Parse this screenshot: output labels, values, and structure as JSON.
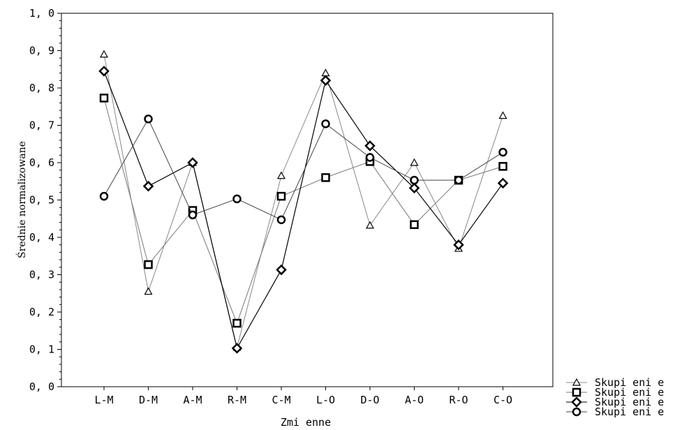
{
  "chart_data": {
    "type": "line",
    "xlabel": "Zmi enne",
    "ylabel": "Średnie normalizowane",
    "ylim": [
      0.0,
      1.0
    ],
    "yticks": [
      "0, 0",
      "0, 1",
      "0, 2",
      "0, 3",
      "0, 4",
      "0, 5",
      "0, 6",
      "0, 7",
      "0, 8",
      "0, 9",
      "1, 0"
    ],
    "categories": [
      "L-M",
      "D-M",
      "A-M",
      "R-M",
      "C-M",
      "L-O",
      "D-O",
      "A-O",
      "R-O",
      "C-O"
    ],
    "grid": false,
    "legend_position": "bottom-right",
    "series": [
      {
        "name": "Skupi eni e",
        "marker": "triangle",
        "line_color": "#888888",
        "values": [
          0.89,
          0.255,
          0.6,
          0.105,
          0.565,
          0.84,
          0.432,
          0.6,
          0.37,
          0.726
        ]
      },
      {
        "name": "Skupi eni e",
        "marker": "square",
        "line_color": "#777777",
        "values": [
          0.773,
          0.327,
          0.472,
          0.17,
          0.51,
          0.56,
          0.603,
          0.434,
          0.553,
          0.59
        ]
      },
      {
        "name": "Skupi eni e",
        "marker": "diamond",
        "line_color": "#000000",
        "values": [
          0.845,
          0.537,
          0.6,
          0.103,
          0.313,
          0.82,
          0.645,
          0.532,
          0.38,
          0.545
        ]
      },
      {
        "name": "Skupi eni e",
        "marker": "circle",
        "line_color": "#444444",
        "values": [
          0.51,
          0.717,
          0.46,
          0.503,
          0.447,
          0.704,
          0.614,
          0.553,
          0.553,
          0.628
        ]
      }
    ]
  }
}
